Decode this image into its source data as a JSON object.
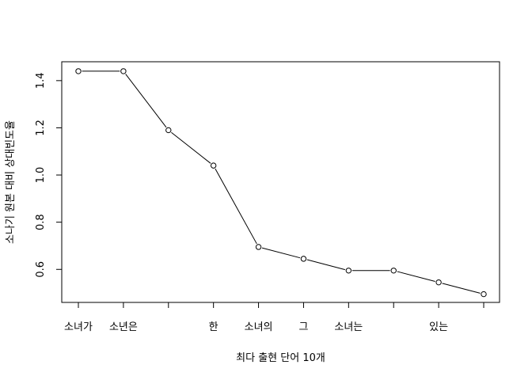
{
  "chart_data": {
    "type": "line",
    "title": "",
    "xlabel": "최다 출현 단어 10개",
    "ylabel": "소나기 원본 대비 상대빈도율",
    "categories": [
      "소녀가",
      "소년은",
      "",
      "한",
      "소녀의",
      "그",
      "소녀는",
      "",
      "있는",
      ""
    ],
    "values": [
      1.44,
      1.44,
      1.19,
      1.04,
      0.695,
      0.645,
      0.595,
      0.595,
      0.545,
      0.495
    ],
    "yticks": [
      "0.6",
      "0.8",
      "1.0",
      "1.2",
      "1.4"
    ],
    "ylim": [
      0.46,
      1.48
    ],
    "grid": false,
    "legend": "none",
    "colors": {
      "line": "#000000",
      "marker_fill": "#ffffff",
      "axis": "#000000"
    }
  }
}
